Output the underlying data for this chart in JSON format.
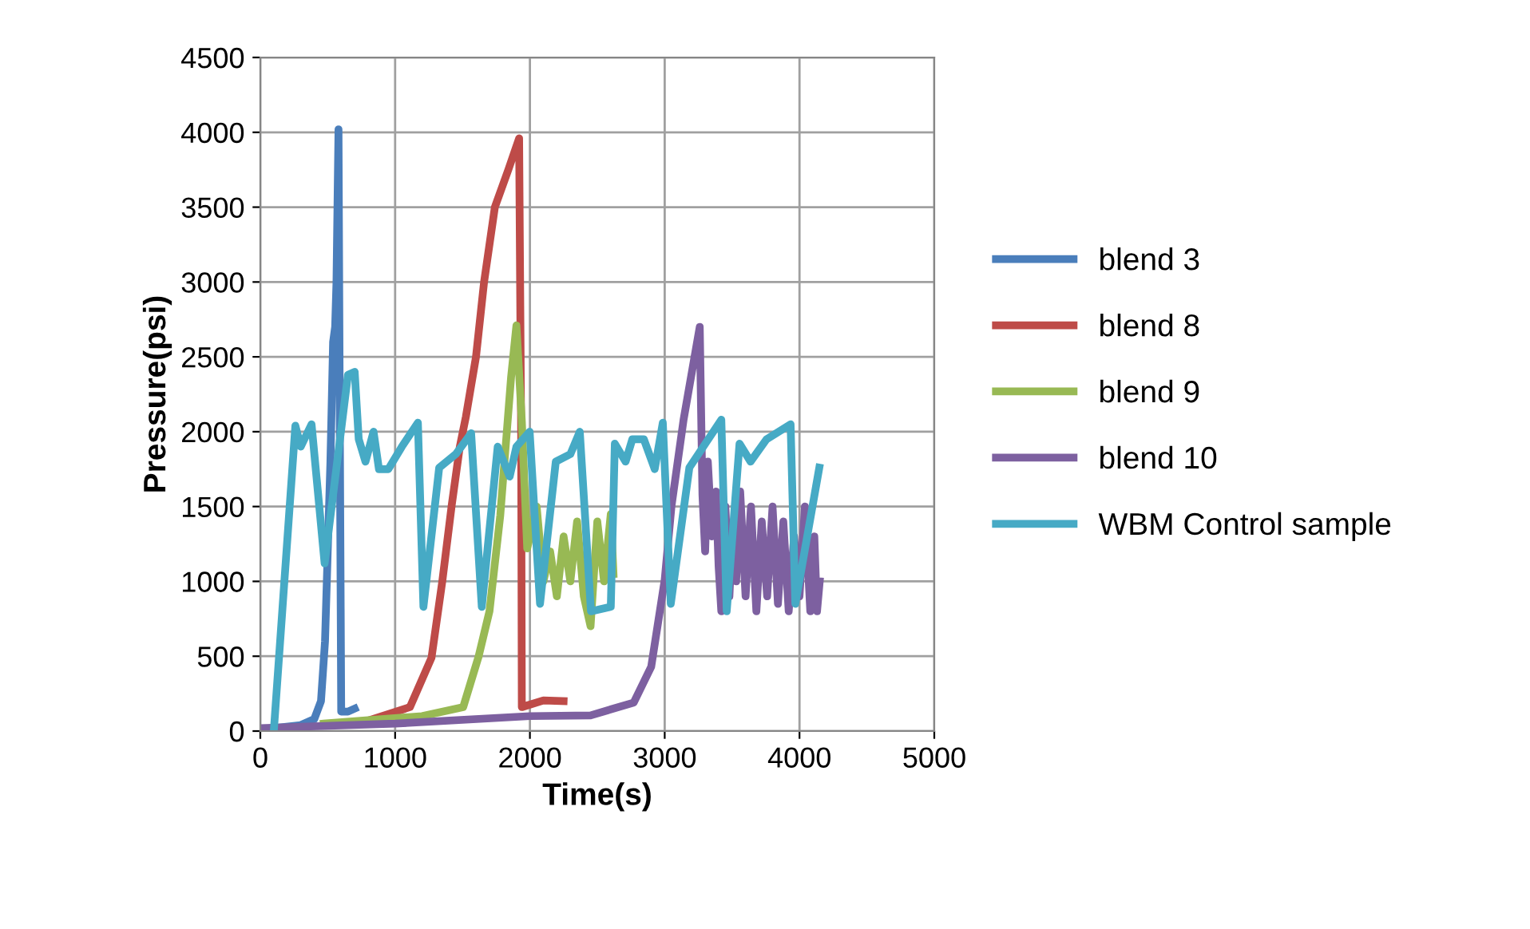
{
  "chart_data": {
    "type": "line",
    "xlabel": "Time(s)",
    "ylabel": "Pressure(psi)",
    "xlim": [
      0,
      5000
    ],
    "ylim": [
      0,
      4500
    ],
    "xticks": [
      0,
      1000,
      2000,
      3000,
      4000,
      5000
    ],
    "yticks": [
      0,
      500,
      1000,
      1500,
      2000,
      2500,
      3000,
      3500,
      4000,
      4500
    ],
    "grid": true,
    "legend": "right",
    "marker": "none",
    "line_style": "solid",
    "series": [
      {
        "name": "blend 3",
        "color": "#4a7ebb",
        "x": [
          100,
          300,
          400,
          450,
          480,
          500,
          520,
          540,
          555,
          565,
          580,
          590,
          600,
          650,
          700
        ],
        "values": [
          20,
          40,
          80,
          200,
          600,
          1200,
          1800,
          2600,
          2700,
          3000,
          4020,
          2000,
          130,
          130,
          150
        ]
      },
      {
        "name": "blend 8",
        "color": "#be4b48",
        "x": [
          800,
          1110,
          1270,
          1350,
          1420,
          1480,
          1525,
          1600,
          1660,
          1740,
          1840,
          1920,
          1935,
          1940,
          2100,
          2250
        ],
        "values": [
          70,
          160,
          490,
          1000,
          1510,
          1900,
          2100,
          2500,
          3000,
          3500,
          3750,
          3960,
          2000,
          160,
          205,
          200
        ]
      },
      {
        "name": "blend 9",
        "color": "#98b954",
        "x": [
          470,
          1200,
          1505,
          1620,
          1700,
          1780,
          1860,
          1900,
          1940,
          1980,
          2000,
          2050,
          2100,
          2150,
          2200,
          2250,
          2300,
          2350,
          2400,
          2450,
          2500,
          2550,
          2600,
          2620
        ],
        "values": [
          50,
          100,
          160,
          500,
          800,
          1440,
          2360,
          2710,
          2070,
          1220,
          1300,
          1500,
          1000,
          1200,
          900,
          1300,
          1000,
          1400,
          900,
          700,
          1400,
          1000,
          1450,
          1050
        ]
      },
      {
        "name": "blend 10",
        "color": "#7d60a0",
        "x": [
          0,
          1000,
          2000,
          2450,
          2770,
          2900,
          3000,
          3050,
          3140,
          3260,
          3280,
          3300,
          3320,
          3350,
          3380,
          3400,
          3420,
          3450,
          3480,
          3500,
          3530,
          3560,
          3600,
          3640,
          3680,
          3720,
          3760,
          3800,
          3840,
          3880,
          3920,
          3960,
          4000,
          4040,
          4080,
          4110,
          4130,
          4150
        ],
        "values": [
          20,
          50,
          100,
          105,
          190,
          430,
          1010,
          1500,
          2080,
          2700,
          1580,
          1200,
          1800,
          1300,
          1600,
          1100,
          800,
          1500,
          900,
          1300,
          1000,
          1600,
          900,
          1500,
          800,
          1400,
          900,
          1500,
          850,
          1400,
          800,
          1300,
          900,
          1500,
          800,
          1300,
          800,
          1000
        ]
      },
      {
        "name": "WBM Control sample",
        "color": "#46aac5",
        "x": [
          100,
          260,
          300,
          380,
          477,
          650,
          700,
          730,
          780,
          840,
          880,
          950,
          1050,
          1169,
          1210,
          1327,
          1450,
          1564,
          1643,
          1761,
          1850,
          1900,
          1998,
          2075,
          2192,
          2300,
          2370,
          2453,
          2600,
          2630,
          2710,
          2760,
          2845,
          2926,
          2986,
          3045,
          3183,
          3420,
          3460,
          3555,
          3637,
          3756,
          3934,
          3969,
          4147
        ],
        "values": [
          0,
          2040,
          1900,
          2050,
          1120,
          2380,
          2400,
          1950,
          1800,
          2000,
          1750,
          1750,
          1900,
          2060,
          830,
          1760,
          1850,
          1990,
          830,
          1900,
          1700,
          1900,
          2000,
          850,
          1800,
          1850,
          2000,
          800,
          830,
          1920,
          1800,
          1950,
          1950,
          1750,
          2060,
          850,
          1760,
          2080,
          800,
          1920,
          1800,
          1950,
          2050,
          850,
          1760
        ]
      }
    ]
  }
}
